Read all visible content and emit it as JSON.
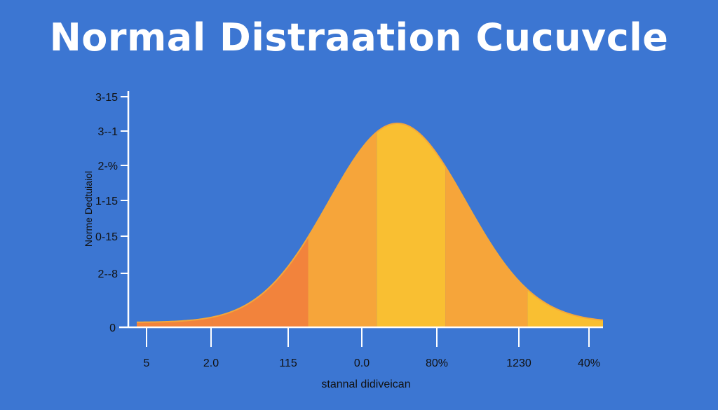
{
  "colors": {
    "background": "#3c76d2",
    "axis": "#ffffff",
    "curve_light": "#f9bf32",
    "curve_mid": "#f6a53a",
    "curve_dark": "#f2833c",
    "outline": "#f4a73a",
    "title": "#ffffff",
    "text": "#111111"
  },
  "chart_data": {
    "type": "area",
    "title": "Normal Distraation Cucuvcle",
    "xlabel": "stannal didiveican",
    "ylabel": "Norme Dedtuiaiol",
    "y_ticks": [
      "3-15",
      "3--1",
      "2-%",
      "1-15",
      "0-15",
      "2--8",
      "0"
    ],
    "x_ticks": [
      "5",
      "2.0",
      "115",
      "0.0",
      "80%",
      "1230",
      "40%"
    ],
    "curve": {
      "mean": 0.3,
      "sd": 1.0,
      "x_range": [
        -3.5,
        3.3
      ],
      "peak": 1.0
    },
    "bands": [
      {
        "from": -3.5,
        "to": -2.4,
        "shade": "dark"
      },
      {
        "from": -2.4,
        "to": -1.0,
        "shade": "dark"
      },
      {
        "from": -1.0,
        "to": 0.0,
        "shade": "mid"
      },
      {
        "from": 0.0,
        "to": 1.0,
        "shade": "light"
      },
      {
        "from": 1.0,
        "to": 2.2,
        "shade": "mid"
      },
      {
        "from": 2.2,
        "to": 3.3,
        "shade": "light"
      }
    ],
    "grid": false
  }
}
